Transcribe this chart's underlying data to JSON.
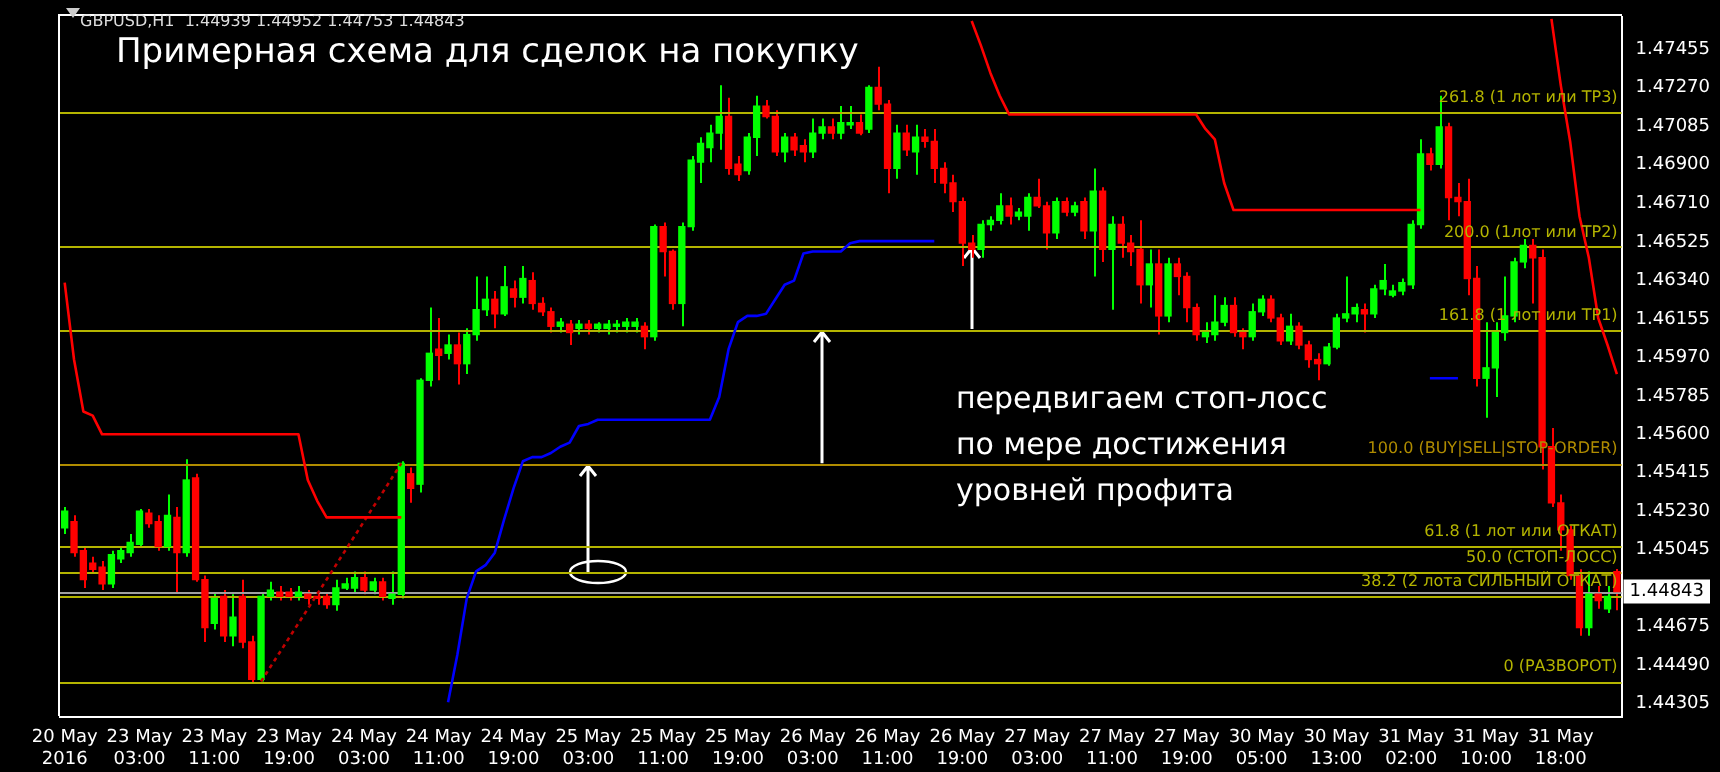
{
  "chart_data": {
    "type": "candlestick",
    "title": "Примерная схема для сделок на покупку",
    "annotations": [
      "GBPUSD,H1  1.44939 1.44952 1.44753 1.44843",
      "передвигаем стоп-лосс\nпо мере достижения\nуровней профита"
    ],
    "categories": [
      "20 May 2016",
      null,
      null,
      null,
      null,
      null,
      null,
      null,
      "23 May 03:00",
      null,
      null,
      null,
      null,
      null,
      null,
      null,
      "23 May 11:00",
      null,
      null,
      null,
      null,
      null,
      null,
      null,
      "23 May 19:00",
      null,
      null,
      null,
      null,
      null,
      null,
      null,
      "24 May 03:00",
      null,
      null,
      null,
      null,
      null,
      null,
      null,
      "24 May 11:00",
      null,
      null,
      null,
      null,
      null,
      null,
      null,
      "24 May 19:00",
      null,
      null,
      null,
      null,
      null,
      null,
      null,
      "25 May 03:00",
      null,
      null,
      null,
      null,
      null,
      null,
      null,
      "25 May 11:00",
      null,
      null,
      null,
      null,
      null,
      null,
      null,
      "25 May 19:00",
      null,
      null,
      null,
      null,
      null,
      null,
      null,
      "26 May 03:00",
      null,
      null,
      null,
      null,
      null,
      null,
      null,
      "26 May 11:00",
      null,
      null,
      null,
      null,
      null,
      null,
      null,
      "26 May 19:00",
      null,
      null,
      null,
      null,
      null,
      null,
      null,
      "27 May 03:00",
      null,
      null,
      null,
      null,
      null,
      null,
      null,
      "27 May 11:00",
      null,
      null,
      null,
      null,
      null,
      null,
      null,
      "27 May 19:00",
      null,
      null,
      null,
      null,
      null,
      null,
      null,
      "30 May 05:00",
      null,
      null,
      null,
      null,
      null,
      null,
      null,
      "30 May 13:00",
      null,
      null,
      null,
      null,
      null,
      null,
      null,
      "31 May 02:00",
      null,
      null,
      null,
      null,
      null,
      null,
      null,
      "31 May 10:00",
      null,
      null,
      null,
      null,
      null,
      null,
      null,
      "31 May 18:00",
      null,
      null,
      null,
      null,
      null,
      null
    ],
    "ohlc": [
      [
        1.4515,
        1.4525,
        1.4512,
        1.4523
      ],
      [
        1.4518,
        1.4521,
        1.4501,
        1.4503
      ],
      [
        1.4504,
        1.4506,
        1.4486,
        1.449
      ],
      [
        1.4498,
        1.4501,
        1.4493,
        1.4495
      ],
      [
        1.4496,
        1.4499,
        1.4485,
        1.4488
      ],
      [
        1.4488,
        1.4504,
        1.4486,
        1.4502
      ],
      [
        1.45,
        1.4506,
        1.4498,
        1.4504
      ],
      [
        1.4503,
        1.4512,
        1.4501,
        1.4508
      ],
      [
        1.4507,
        1.4524,
        1.4506,
        1.4523
      ],
      [
        1.4522,
        1.4524,
        1.4515,
        1.4517
      ],
      [
        1.4518,
        1.4521,
        1.4504,
        1.4506
      ],
      [
        1.4506,
        1.4531,
        1.4504,
        1.4521
      ],
      [
        1.452,
        1.4525,
        1.4484,
        1.4503
      ],
      [
        1.4503,
        1.4548,
        1.4501,
        1.4538
      ],
      [
        1.4539,
        1.4541,
        1.4489,
        1.449
      ],
      [
        1.449,
        1.4492,
        1.446,
        1.4467
      ],
      [
        1.4469,
        1.4484,
        1.4466,
        1.4481
      ],
      [
        1.4482,
        1.4485,
        1.446,
        1.4463
      ],
      [
        1.4463,
        1.4483,
        1.4458,
        1.4472
      ],
      [
        1.4482,
        1.449,
        1.4457,
        1.446
      ],
      [
        1.446,
        1.4463,
        1.444,
        1.4442
      ],
      [
        1.4442,
        1.4484,
        1.4441,
        1.4482
      ],
      [
        1.4482,
        1.4489,
        1.448,
        1.4485
      ],
      [
        1.4484,
        1.4487,
        1.448,
        1.4482
      ],
      [
        1.4484,
        1.4486,
        1.448,
        1.4482
      ],
      [
        1.4482,
        1.4487,
        1.448,
        1.4484
      ],
      [
        1.4483,
        1.4485,
        1.4478,
        1.4481
      ],
      [
        1.4482,
        1.4484,
        1.4478,
        1.4481
      ],
      [
        1.4482,
        1.4484,
        1.4476,
        1.4478
      ],
      [
        1.4478,
        1.449,
        1.4475,
        1.4486
      ],
      [
        1.4486,
        1.4491,
        1.4485,
        1.4488
      ],
      [
        1.4486,
        1.4494,
        1.4484,
        1.4491
      ],
      [
        1.4491,
        1.4494,
        1.4483,
        1.4485
      ],
      [
        1.4485,
        1.4491,
        1.4483,
        1.4489
      ],
      [
        1.4489,
        1.4491,
        1.448,
        1.4482
      ],
      [
        1.4481,
        1.4494,
        1.4478,
        1.4483
      ],
      [
        1.4483,
        1.4547,
        1.4481,
        1.4546
      ],
      [
        1.4541,
        1.4544,
        1.4527,
        1.4534
      ],
      [
        1.4536,
        1.4587,
        1.4532,
        1.4586
      ],
      [
        1.4586,
        1.4621,
        1.4583,
        1.4599
      ],
      [
        1.4601,
        1.4616,
        1.4586,
        1.4598
      ],
      [
        1.4599,
        1.4608,
        1.4596,
        1.4603
      ],
      [
        1.4603,
        1.4609,
        1.4584,
        1.4594
      ],
      [
        1.4594,
        1.4611,
        1.4589,
        1.4608
      ],
      [
        1.4608,
        1.4636,
        1.4605,
        1.462
      ],
      [
        1.462,
        1.4636,
        1.4617,
        1.4625
      ],
      [
        1.4625,
        1.4629,
        1.4611,
        1.4618
      ],
      [
        1.4618,
        1.4641,
        1.4617,
        1.4631
      ],
      [
        1.463,
        1.4634,
        1.4621,
        1.4626
      ],
      [
        1.4626,
        1.4641,
        1.4623,
        1.4635
      ],
      [
        1.4634,
        1.4638,
        1.462,
        1.4623
      ],
      [
        1.4623,
        1.4626,
        1.4617,
        1.4619
      ],
      [
        1.4619,
        1.4621,
        1.4609,
        1.4612
      ],
      [
        1.4612,
        1.4616,
        1.4609,
        1.4614
      ],
      [
        1.4613,
        1.4615,
        1.4603,
        1.4609
      ],
      [
        1.4611,
        1.4615,
        1.4608,
        1.4613
      ],
      [
        1.4613,
        1.4615,
        1.4608,
        1.4611
      ],
      [
        1.4611,
        1.4614,
        1.4609,
        1.4613
      ],
      [
        1.4611,
        1.4615,
        1.4608,
        1.4613
      ],
      [
        1.4612,
        1.4615,
        1.4609,
        1.4613
      ],
      [
        1.4612,
        1.4616,
        1.4609,
        1.4614
      ],
      [
        1.4612,
        1.4616,
        1.4609,
        1.4614
      ],
      [
        1.4612,
        1.4614,
        1.4601,
        1.4607
      ],
      [
        1.4607,
        1.4661,
        1.4605,
        1.466
      ],
      [
        1.466,
        1.4662,
        1.4636,
        1.4648
      ],
      [
        1.4648,
        1.4649,
        1.462,
        1.4623
      ],
      [
        1.4623,
        1.4662,
        1.4612,
        1.466
      ],
      [
        1.466,
        1.4694,
        1.4658,
        1.4692
      ],
      [
        1.4691,
        1.4703,
        1.4681,
        1.47
      ],
      [
        1.4698,
        1.4709,
        1.4691,
        1.4705
      ],
      [
        1.4705,
        1.4728,
        1.4697,
        1.4713
      ],
      [
        1.4713,
        1.4722,
        1.4685,
        1.4688
      ],
      [
        1.469,
        1.4694,
        1.4682,
        1.4685
      ],
      [
        1.4687,
        1.4705,
        1.4685,
        1.4703
      ],
      [
        1.4703,
        1.4723,
        1.4694,
        1.4718
      ],
      [
        1.4718,
        1.4721,
        1.4712,
        1.4713
      ],
      [
        1.4713,
        1.4716,
        1.4694,
        1.4696
      ],
      [
        1.4696,
        1.4705,
        1.4691,
        1.4703
      ],
      [
        1.4703,
        1.4705,
        1.4694,
        1.4697
      ],
      [
        1.4699,
        1.4702,
        1.4691,
        1.4696
      ],
      [
        1.4696,
        1.4712,
        1.4693,
        1.4705
      ],
      [
        1.4705,
        1.4712,
        1.4702,
        1.4708
      ],
      [
        1.4708,
        1.4712,
        1.4702,
        1.4705
      ],
      [
        1.4705,
        1.4718,
        1.4702,
        1.471
      ],
      [
        1.4709,
        1.4718,
        1.4707,
        1.471
      ],
      [
        1.471,
        1.4714,
        1.4704,
        1.4705
      ],
      [
        1.4707,
        1.4728,
        1.4705,
        1.4727
      ],
      [
        1.4727,
        1.4737,
        1.4716,
        1.4719
      ],
      [
        1.4719,
        1.4721,
        1.4676,
        1.4688
      ],
      [
        1.4688,
        1.4709,
        1.4683,
        1.4705
      ],
      [
        1.4705,
        1.4709,
        1.4694,
        1.4697
      ],
      [
        1.4696,
        1.4709,
        1.4685,
        1.4703
      ],
      [
        1.4703,
        1.4707,
        1.4698,
        1.4701
      ],
      [
        1.4701,
        1.4707,
        1.4681,
        1.4688
      ],
      [
        1.4688,
        1.4691,
        1.4676,
        1.4681
      ],
      [
        1.4681,
        1.4685,
        1.4667,
        1.4672
      ],
      [
        1.4672,
        1.4674,
        1.4641,
        1.4652
      ],
      [
        1.4652,
        1.4656,
        1.4645,
        1.4649
      ],
      [
        1.4649,
        1.4663,
        1.4645,
        1.4661
      ],
      [
        1.4661,
        1.4665,
        1.4658,
        1.4663
      ],
      [
        1.4663,
        1.4676,
        1.4661,
        1.467
      ],
      [
        1.467,
        1.4674,
        1.4661,
        1.4665
      ],
      [
        1.4665,
        1.4669,
        1.4663,
        1.4667
      ],
      [
        1.4665,
        1.4676,
        1.4658,
        1.4674
      ],
      [
        1.4674,
        1.4683,
        1.4669,
        1.467
      ],
      [
        1.467,
        1.4672,
        1.4649,
        1.4657
      ],
      [
        1.4657,
        1.4674,
        1.4654,
        1.4672
      ],
      [
        1.4672,
        1.4674,
        1.4665,
        1.4667
      ],
      [
        1.4667,
        1.4672,
        1.4665,
        1.467
      ],
      [
        1.4672,
        1.4674,
        1.4654,
        1.4658
      ],
      [
        1.4658,
        1.4688,
        1.4636,
        1.4677
      ],
      [
        1.4677,
        1.4679,
        1.4643,
        1.4649
      ],
      [
        1.4649,
        1.4665,
        1.462,
        1.4661
      ],
      [
        1.4661,
        1.4665,
        1.4645,
        1.4652
      ],
      [
        1.4652,
        1.4656,
        1.4641,
        1.4648
      ],
      [
        1.4649,
        1.4663,
        1.4623,
        1.4632
      ],
      [
        1.4632,
        1.4649,
        1.4621,
        1.4642
      ],
      [
        1.4642,
        1.4649,
        1.4608,
        1.4617
      ],
      [
        1.4617,
        1.4645,
        1.4614,
        1.4642
      ],
      [
        1.4642,
        1.4645,
        1.4627,
        1.4636
      ],
      [
        1.4636,
        1.4638,
        1.4614,
        1.4621
      ],
      [
        1.4621,
        1.4623,
        1.4605,
        1.4608
      ],
      [
        1.4607,
        1.4614,
        1.4604,
        1.4609
      ],
      [
        1.4608,
        1.4627,
        1.4605,
        1.4614
      ],
      [
        1.4614,
        1.4626,
        1.4612,
        1.4622
      ],
      [
        1.4622,
        1.4626,
        1.4607,
        1.4609
      ],
      [
        1.4609,
        1.4611,
        1.4601,
        1.4607
      ],
      [
        1.4607,
        1.4623,
        1.4605,
        1.4619
      ],
      [
        1.4619,
        1.4627,
        1.4617,
        1.4625
      ],
      [
        1.4625,
        1.4627,
        1.4614,
        1.4616
      ],
      [
        1.4616,
        1.4618,
        1.4603,
        1.4605
      ],
      [
        1.4605,
        1.4618,
        1.4603,
        1.4612
      ],
      [
        1.4612,
        1.4614,
        1.4601,
        1.4603
      ],
      [
        1.4603,
        1.4605,
        1.4592,
        1.4596
      ],
      [
        1.4596,
        1.4599,
        1.4586,
        1.4594
      ],
      [
        1.4594,
        1.4604,
        1.4593,
        1.4602
      ],
      [
        1.4602,
        1.4618,
        1.4601,
        1.4616
      ],
      [
        1.4616,
        1.4636,
        1.4614,
        1.4618
      ],
      [
        1.4618,
        1.4623,
        1.4614,
        1.4621
      ],
      [
        1.462,
        1.4623,
        1.4609,
        1.4618
      ],
      [
        1.4618,
        1.4632,
        1.4616,
        1.463
      ],
      [
        1.463,
        1.4642,
        1.4627,
        1.4634
      ],
      [
        1.4627,
        1.4632,
        1.4626,
        1.4629
      ],
      [
        1.4629,
        1.4635,
        1.4627,
        1.4633
      ],
      [
        1.4632,
        1.4663,
        1.463,
        1.4661
      ],
      [
        1.4661,
        1.4702,
        1.4659,
        1.4695
      ],
      [
        1.4695,
        1.4698,
        1.4687,
        1.469
      ],
      [
        1.469,
        1.4723,
        1.4688,
        1.4708
      ],
      [
        1.4708,
        1.471,
        1.4663,
        1.4674
      ],
      [
        1.4674,
        1.4681,
        1.4665,
        1.4672
      ],
      [
        1.4672,
        1.4683,
        1.4627,
        1.4635
      ],
      [
        1.4635,
        1.4641,
        1.4583,
        1.4587
      ],
      [
        1.4587,
        1.4614,
        1.4568,
        1.4592
      ],
      [
        1.4592,
        1.4614,
        1.4578,
        1.4609
      ],
      [
        1.4609,
        1.4636,
        1.4605,
        1.4617
      ],
      [
        1.4617,
        1.4645,
        1.4614,
        1.4643
      ],
      [
        1.4643,
        1.4654,
        1.464,
        1.4651
      ],
      [
        1.4651,
        1.4654,
        1.4623,
        1.4645
      ],
      [
        1.4645,
        1.4649,
        1.4543,
        1.4554
      ],
      [
        1.4554,
        1.4563,
        1.4525,
        1.4527
      ],
      [
        1.4527,
        1.4531,
        1.4504,
        1.4514
      ],
      [
        1.4514,
        1.4516,
        1.449,
        1.4492
      ],
      [
        1.4492,
        1.4495,
        1.4463,
        1.4467
      ],
      [
        1.4467,
        1.4494,
        1.4463,
        1.4483
      ],
      [
        1.4483,
        1.4487,
        1.4476,
        1.448
      ],
      [
        1.4476,
        1.4487,
        1.4474,
        1.4482
      ],
      [
        1.44939,
        1.44952,
        1.44753,
        1.44843
      ]
    ],
    "series": [
      {
        "type": "line",
        "color": "#ff0000",
        "values": [
          1.4633,
          1.4596,
          1.4571,
          1.4569,
          1.456,
          1.456,
          1.456,
          1.456,
          1.456,
          1.456,
          1.456,
          1.456,
          1.456,
          1.456,
          1.456,
          1.456,
          1.456,
          1.456,
          1.456,
          1.456,
          1.456,
          1.456,
          1.456,
          1.456,
          1.456,
          1.456,
          1.4538,
          1.4528,
          1.452,
          1.452,
          1.452,
          1.452,
          1.452,
          1.452,
          1.452,
          1.452,
          1.452,
          null,
          null,
          null,
          null,
          null,
          null,
          null,
          null,
          null,
          null,
          null,
          null,
          null,
          null,
          null,
          null,
          null,
          null,
          null,
          null,
          null,
          null,
          null,
          null,
          null,
          null,
          null,
          null,
          null,
          null,
          null,
          null,
          null,
          null,
          null,
          null,
          null,
          null,
          null,
          null,
          null,
          null,
          null,
          null,
          null,
          null,
          null,
          null,
          null,
          null,
          null,
          null,
          null,
          null,
          null,
          null,
          null,
          null,
          null,
          null,
          1.4759,
          1.4747,
          1.4734,
          1.4723,
          1.4714,
          1.4714,
          1.4714,
          1.4714,
          1.4714,
          1.4714,
          1.4714,
          1.4714,
          1.4714,
          1.4714,
          1.4714,
          1.4714,
          1.4714,
          1.4714,
          1.4714,
          1.4714,
          1.4714,
          1.4714,
          1.4714,
          1.4714,
          1.4714,
          1.4707,
          1.4702,
          1.4681,
          1.4668,
          1.4668,
          1.4668,
          1.4668,
          1.4668,
          1.4668,
          1.4668,
          1.4668,
          1.4668,
          1.4668,
          1.4668,
          1.4668,
          1.4668,
          1.4668,
          1.4668,
          1.4668,
          1.4668,
          1.4668,
          1.4668,
          1.4668,
          1.4668,
          null,
          null,
          null,
          null,
          null,
          null,
          null,
          null,
          null,
          null,
          null,
          null,
          null,
          1.476,
          1.4728,
          1.4701,
          1.4665,
          1.4645,
          1.4616,
          1.4603,
          1.4589
        ]
      },
      {
        "type": "line",
        "color": "#0000ff",
        "values": [
          null,
          null,
          null,
          null,
          null,
          null,
          null,
          null,
          null,
          null,
          null,
          null,
          null,
          null,
          null,
          null,
          null,
          null,
          null,
          null,
          null,
          null,
          null,
          null,
          null,
          null,
          null,
          null,
          null,
          null,
          null,
          null,
          null,
          null,
          null,
          null,
          null,
          null,
          null,
          null,
          null,
          1.4431,
          1.4454,
          1.4481,
          1.4494,
          1.4497,
          1.4503,
          1.4519,
          1.4534,
          1.4547,
          1.4549,
          1.4549,
          1.4551,
          1.4554,
          1.4556,
          1.4564,
          1.4565,
          1.4567,
          1.4567,
          1.4567,
          1.4567,
          1.4567,
          1.4567,
          1.4567,
          1.4567,
          1.4567,
          1.4567,
          1.4567,
          1.4567,
          1.4567,
          1.4578,
          1.4601,
          1.4614,
          1.4617,
          1.4617,
          1.4618,
          1.4625,
          1.4632,
          1.4634,
          1.4647,
          1.4648,
          1.4648,
          1.4648,
          1.4648,
          1.4652,
          1.4653,
          1.4653,
          1.4653,
          1.4653,
          1.4653,
          1.4653,
          1.4653,
          1.4653,
          1.4653,
          null,
          null,
          null,
          null,
          null,
          null,
          null,
          null,
          null,
          null,
          null,
          null,
          null,
          null,
          null,
          null,
          null,
          null,
          null,
          null,
          null,
          null,
          null,
          null,
          null,
          null,
          null,
          null,
          null,
          null,
          null,
          null,
          null,
          null,
          null,
          null,
          null,
          null,
          null,
          null,
          null,
          null,
          null,
          null,
          null,
          null,
          null,
          null,
          null,
          null,
          null,
          null,
          1.4587,
          1.4587,
          1.4587,
          1.4587,
          null,
          null,
          null,
          null,
          null,
          null,
          null,
          null,
          null,
          null,
          null,
          null,
          null,
          null,
          null,
          null,
          null
        ]
      },
      {
        "type": "line",
        "color": "#c00000",
        "line_style": "dotted",
        "values": [
          null,
          null,
          null,
          null,
          null,
          null,
          null,
          null,
          null,
          null,
          null,
          null,
          null,
          null,
          null,
          null,
          null,
          null,
          null,
          null,
          null,
          1.4441,
          null,
          null,
          null,
          null,
          null,
          null,
          null,
          null,
          null,
          null,
          null,
          null,
          null,
          null,
          1.4546,
          null,
          null,
          null,
          null,
          null,
          null,
          null,
          null,
          null,
          null,
          null,
          null,
          null,
          null,
          null,
          null,
          null,
          null,
          null,
          null,
          null,
          null,
          null,
          null,
          null,
          null,
          null,
          null,
          null,
          null,
          null,
          null,
          null,
          null,
          null,
          null,
          null,
          null,
          null,
          null,
          null,
          null,
          null,
          null,
          null,
          null,
          null,
          null,
          null,
          null,
          null,
          null,
          null,
          null,
          null,
          null,
          null,
          null,
          null,
          null,
          null,
          null,
          null,
          null,
          null,
          null,
          null,
          null,
          null,
          null,
          null,
          null,
          null,
          null,
          null,
          null,
          null,
          null,
          null,
          null,
          null,
          null,
          null,
          null,
          null,
          null,
          null,
          null,
          null,
          null,
          null,
          null,
          null,
          null,
          null,
          null,
          null,
          null,
          null,
          null,
          null,
          null,
          null,
          null,
          null,
          null,
          null,
          null,
          null,
          null,
          null,
          null,
          null,
          null,
          null,
          null,
          null,
          null,
          null,
          null,
          null,
          null,
          null,
          null,
          null,
          null,
          null,
          null,
          null,
          null
        ]
      }
    ],
    "ylim": [
      1.4424,
      1.4761
    ],
    "yticks": [
      {
        "value": 1.44305,
        "label": "1.44305"
      },
      {
        "value": 1.4449,
        "label": "1.44490"
      },
      {
        "value": 1.44675,
        "label": "1.44675"
      },
      {
        "value": 1.45045,
        "label": "1.45045"
      },
      {
        "value": 1.4523,
        "label": "1.45230"
      },
      {
        "value": 1.45415,
        "label": "1.45415"
      },
      {
        "value": 1.456,
        "label": "1.45600"
      },
      {
        "value": 1.45785,
        "label": "1.45785"
      },
      {
        "value": 1.4597,
        "label": "1.45970"
      },
      {
        "value": 1.46155,
        "label": "1.46155"
      },
      {
        "value": 1.4634,
        "label": "1.46340"
      },
      {
        "value": 1.46525,
        "label": "1.46525"
      },
      {
        "value": 1.4671,
        "label": "1.46710"
      },
      {
        "value": 1.469,
        "label": "1.46900"
      },
      {
        "value": 1.47085,
        "label": "1.47085"
      },
      {
        "value": 1.4727,
        "label": "1.47270"
      },
      {
        "value": 1.47455,
        "label": "1.47455"
      }
    ],
    "ref_lines": [
      {
        "axis": "y",
        "value": 1.44843,
        "label": "1.44843",
        "color": "#a0a0a0"
      },
      {
        "axis": "y",
        "value": 1.47151,
        "label": "261.8 (1 лот или TP3)",
        "color": "#b4b400"
      },
      {
        "axis": "y",
        "value": 1.46502,
        "label": "200.0 (1лот или TP2)",
        "color": "#b4b400"
      },
      {
        "axis": "y",
        "value": 1.46102,
        "label": "161.8 (1 лот или TP1)",
        "color": "#b4b400"
      },
      {
        "axis": "y",
        "value": 1.45461,
        "label": "100.0 (BUY|SELL|STOP-ORDER)",
        "color": "#b08c00"
      },
      {
        "axis": "y",
        "value": 1.45061,
        "label": "61.8 (1 лот или ОТКАТ)",
        "color": "#b4b400"
      },
      {
        "axis": "y",
        "value": 1.44936,
        "label": "50.0 (СТОП-ЛОСС)",
        "color": "#b4b400"
      },
      {
        "axis": "y",
        "value": 1.44821,
        "label": "38.2 (2 лота СИЛЬНЫЙ ОТКАТ)",
        "color": "#b4b400"
      },
      {
        "axis": "y",
        "value": 1.44412,
        "label": "0 (РАЗВОРОТ)",
        "color": "#b4b400"
      }
    ]
  }
}
